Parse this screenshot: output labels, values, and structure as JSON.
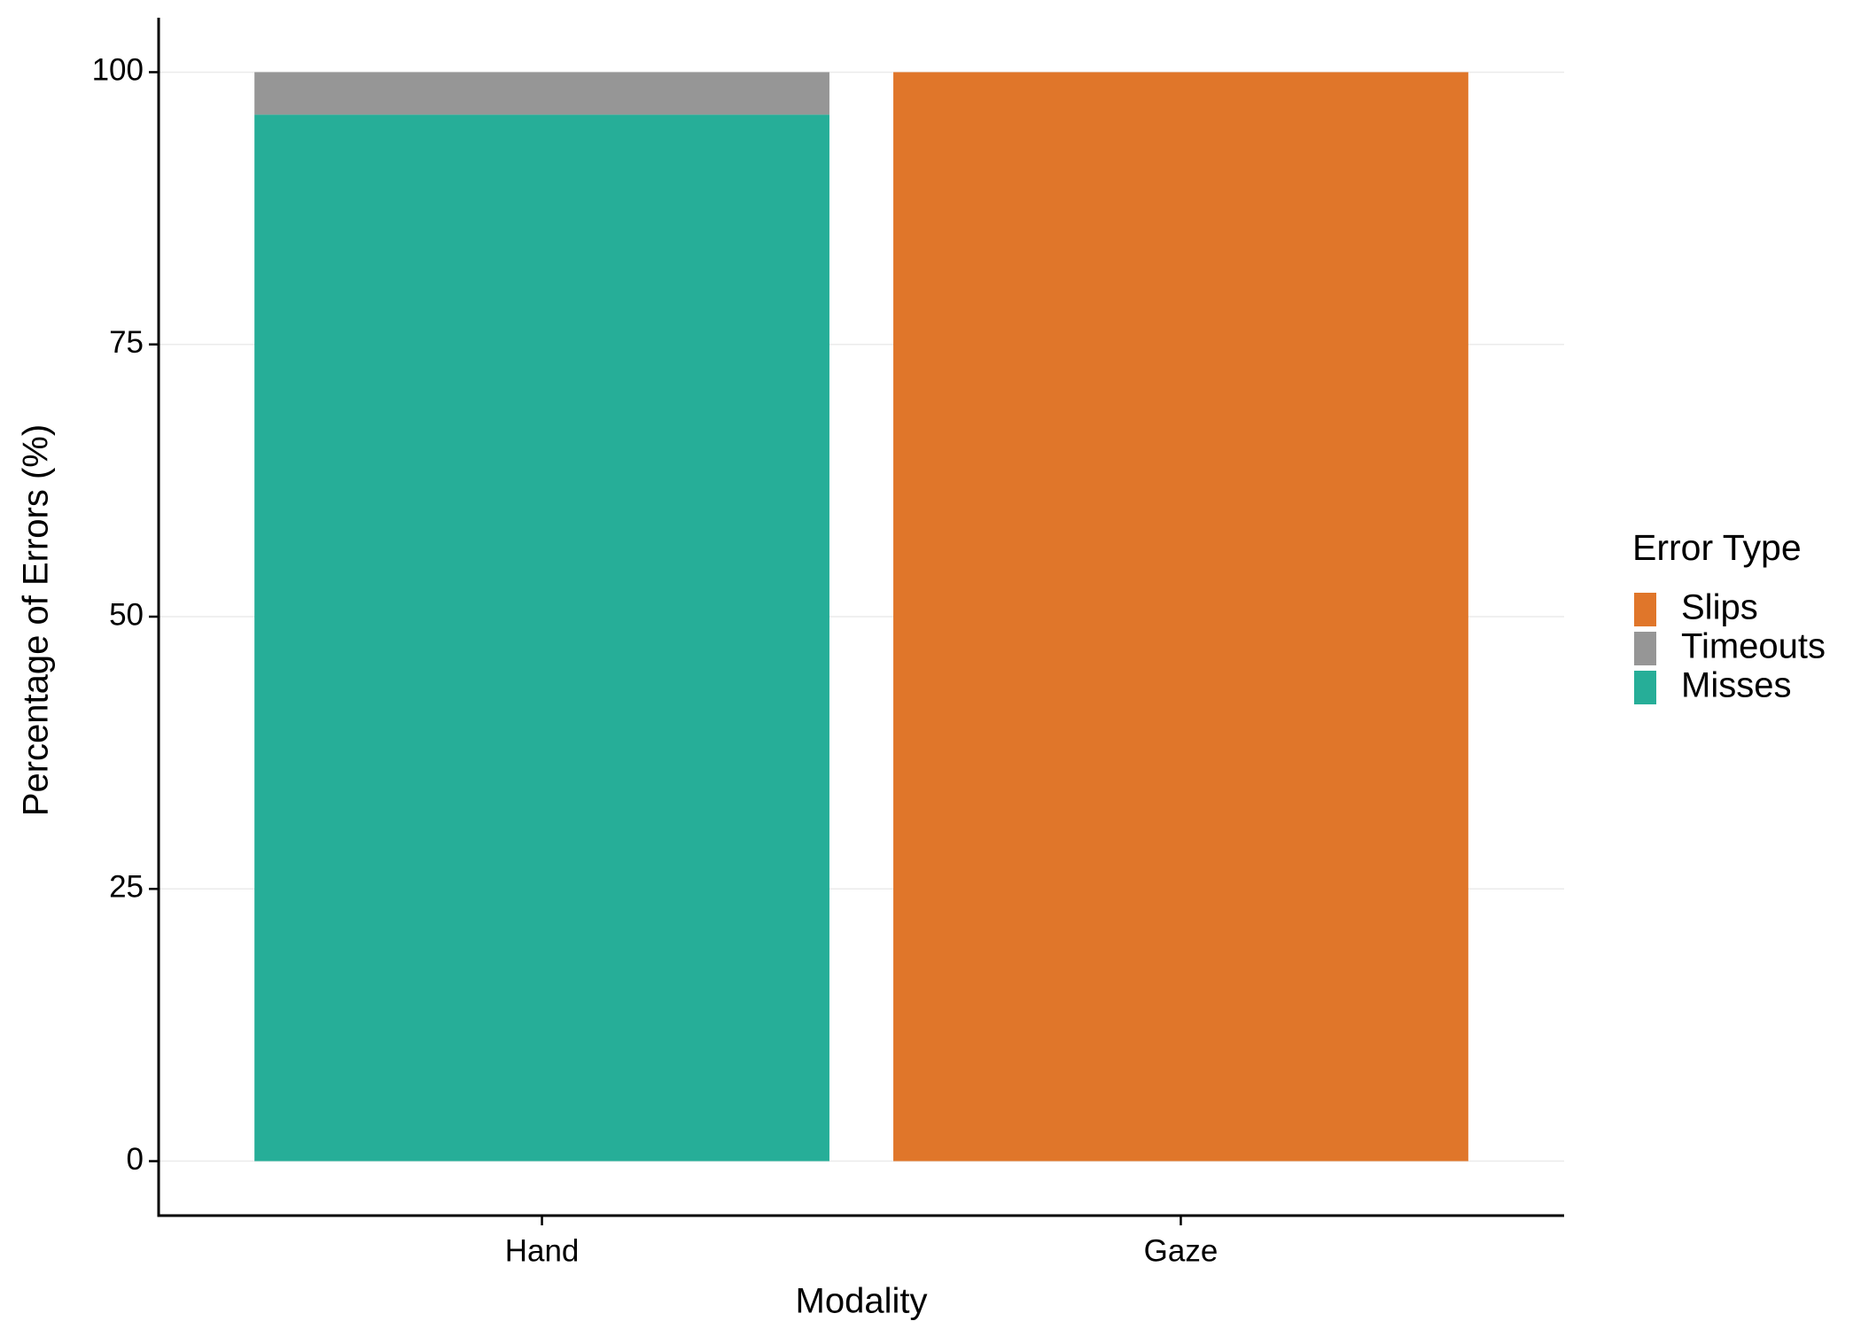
{
  "chart_data": {
    "type": "stacked-bar",
    "x_label": "Modality",
    "y_label": "Percentage of Errors (%)",
    "categories": [
      "Hand",
      "Gaze"
    ],
    "series": [
      {
        "name": "Misses",
        "color": "#26ae98",
        "values": [
          96.1,
          0
        ]
      },
      {
        "name": "Timeouts",
        "color": "#969696",
        "values": [
          3.9,
          0
        ]
      },
      {
        "name": "Slips",
        "color": "#e0762a",
        "values": [
          0,
          100
        ]
      }
    ],
    "ylim": [
      -5,
      105
    ],
    "yticks": [
      0,
      25,
      50,
      75,
      100
    ],
    "grid": true,
    "legend": {
      "title": "Error Type",
      "position": "right"
    }
  }
}
